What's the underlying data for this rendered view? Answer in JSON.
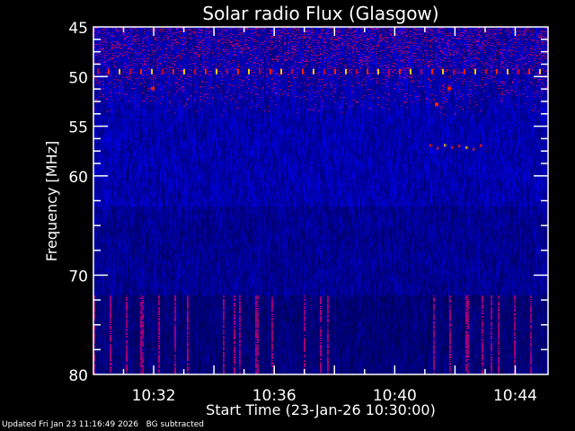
{
  "chart_data": {
    "type": "heatmap",
    "title": "Solar radio Flux (Glasgow)",
    "xlabel": "Start Time (23-Jan-26 10:30:00)",
    "ylabel": "Frequency [MHz]",
    "xlim": [
      "10:30",
      "10:45"
    ],
    "ylim": [
      45,
      80
    ],
    "y_inverted": true,
    "xticks": [
      "10:32",
      "10:36",
      "10:40",
      "10:44"
    ],
    "yticks": [
      45,
      50,
      55,
      60,
      70,
      80
    ],
    "colormap": [
      "#0000a0",
      "#1a1aff",
      "#c00040",
      "#ff2000",
      "#ffd000",
      "#ffffff"
    ],
    "features": [
      {
        "kind": "interference-line",
        "freq_mhz": 49.5
      },
      {
        "kind": "spot",
        "time": "10:31:55",
        "freq_mhz": 51.2
      },
      {
        "kind": "spot",
        "time": "10:41:45",
        "freq_mhz": 51.2
      },
      {
        "kind": "spot",
        "time": "10:41:20",
        "freq_mhz": 52.8
      },
      {
        "kind": "burst-cluster",
        "time_start": "10:41:10",
        "time_end": "10:43:00",
        "freq_mhz": 57
      }
    ]
  },
  "footer": {
    "updated": "Updated Fri Jan 23 11:16:49 2026",
    "note": "BG subtracted"
  }
}
